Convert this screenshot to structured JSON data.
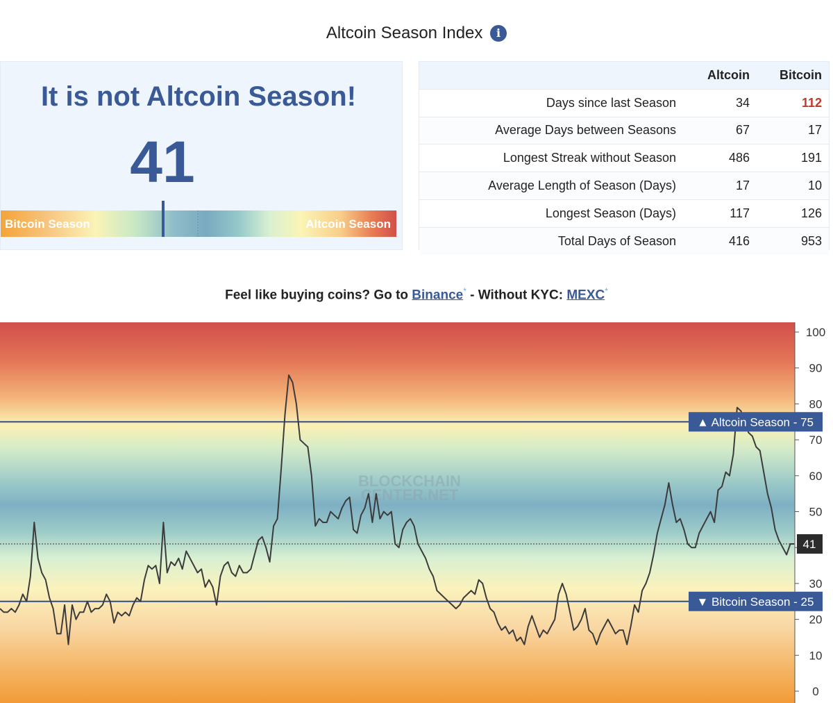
{
  "header": {
    "title": "Altcoin Season Index",
    "info_icon": "info-icon"
  },
  "status": {
    "headline": "It is not Altcoin Season!",
    "value": "41",
    "gauge_level": 41,
    "left_label": "Bitcoin Season",
    "right_label": "Altcoin Season"
  },
  "stats_table": {
    "columns": [
      "",
      "Altcoin",
      "Bitcoin"
    ],
    "rows": [
      {
        "label": "Days since last Season",
        "altcoin": "34",
        "bitcoin": "112",
        "bitcoin_highlight": true
      },
      {
        "label": "Average Days between Seasons",
        "altcoin": "67",
        "bitcoin": "17"
      },
      {
        "label": "Longest Streak without Season",
        "altcoin": "486",
        "bitcoin": "191"
      },
      {
        "label": "Average Length of Season (Days)",
        "altcoin": "17",
        "bitcoin": "10"
      },
      {
        "label": "Longest Season (Days)",
        "altcoin": "117",
        "bitcoin": "126"
      },
      {
        "label": "Total Days of Season",
        "altcoin": "416",
        "bitcoin": "953"
      }
    ]
  },
  "promo": {
    "prefix": "Feel like buying coins? Go to",
    "link1": "Binance",
    "middle": "- Without KYC:",
    "link2": "MEXC",
    "asterisk": "*"
  },
  "colors": {
    "accent": "#3a5a97",
    "highlight_red": "#c0392b",
    "band_top": "#d04f4b",
    "band_bottom": "#f4a338"
  },
  "chart_data": {
    "type": "line",
    "ylim": [
      0,
      100
    ],
    "yticks": [
      100,
      90,
      80,
      70,
      60,
      50,
      40,
      30,
      20,
      10,
      0
    ],
    "watermark": [
      "BLOCKCHAIN",
      "CENTER.NET"
    ],
    "thresholds": [
      {
        "name": "Altcoin Season",
        "value": 75,
        "label": "▲ Altcoin Season - 75"
      },
      {
        "name": "Bitcoin Season",
        "value": 25,
        "label": "▼ Bitcoin Season - 25"
      }
    ],
    "current": {
      "value": 41,
      "label": "41"
    },
    "series": [
      {
        "values": [
          23,
          22,
          22,
          23,
          22,
          24,
          27,
          25,
          32,
          47,
          37,
          33,
          31,
          26,
          23,
          16,
          16,
          24,
          13,
          24,
          20,
          22,
          22,
          25,
          22,
          23,
          23,
          24,
          27,
          25,
          19,
          22,
          21,
          22,
          21,
          24,
          26,
          25,
          31,
          35,
          34,
          35,
          30,
          47,
          33,
          36,
          35,
          37,
          34,
          39,
          37,
          35,
          33,
          34,
          29,
          31,
          29,
          24,
          32,
          35,
          36,
          33,
          32,
          35,
          33,
          33,
          34,
          38,
          42,
          43,
          40,
          36,
          46,
          48,
          62,
          77,
          88,
          86,
          80,
          70,
          69,
          68,
          60,
          46,
          48,
          47,
          47,
          50,
          49,
          48,
          51,
          53,
          54,
          45,
          44,
          49,
          51,
          55,
          47,
          55,
          48,
          50,
          49,
          50,
          41,
          40,
          45,
          47,
          48,
          46,
          41,
          39,
          37,
          34,
          32,
          28,
          27,
          26,
          25,
          24,
          23,
          24,
          26,
          27,
          28,
          27,
          31,
          30,
          26,
          23,
          22,
          19,
          17,
          18,
          16,
          17,
          14,
          15,
          13,
          18,
          21,
          18,
          15,
          17,
          16,
          18,
          20,
          27,
          30,
          27,
          22,
          17,
          18,
          20,
          23,
          17,
          16,
          13,
          16,
          18,
          20,
          18,
          16,
          17,
          17,
          13,
          18,
          24,
          22,
          28,
          30,
          33,
          38,
          44,
          48,
          52,
          58,
          52,
          47,
          48,
          45,
          41,
          40,
          40,
          44,
          46,
          48,
          50,
          47,
          56,
          57,
          61,
          60,
          66,
          79,
          78,
          75,
          72,
          71,
          68,
          67,
          61,
          55,
          51,
          45,
          42,
          40,
          38,
          41,
          41
        ]
      }
    ]
  }
}
